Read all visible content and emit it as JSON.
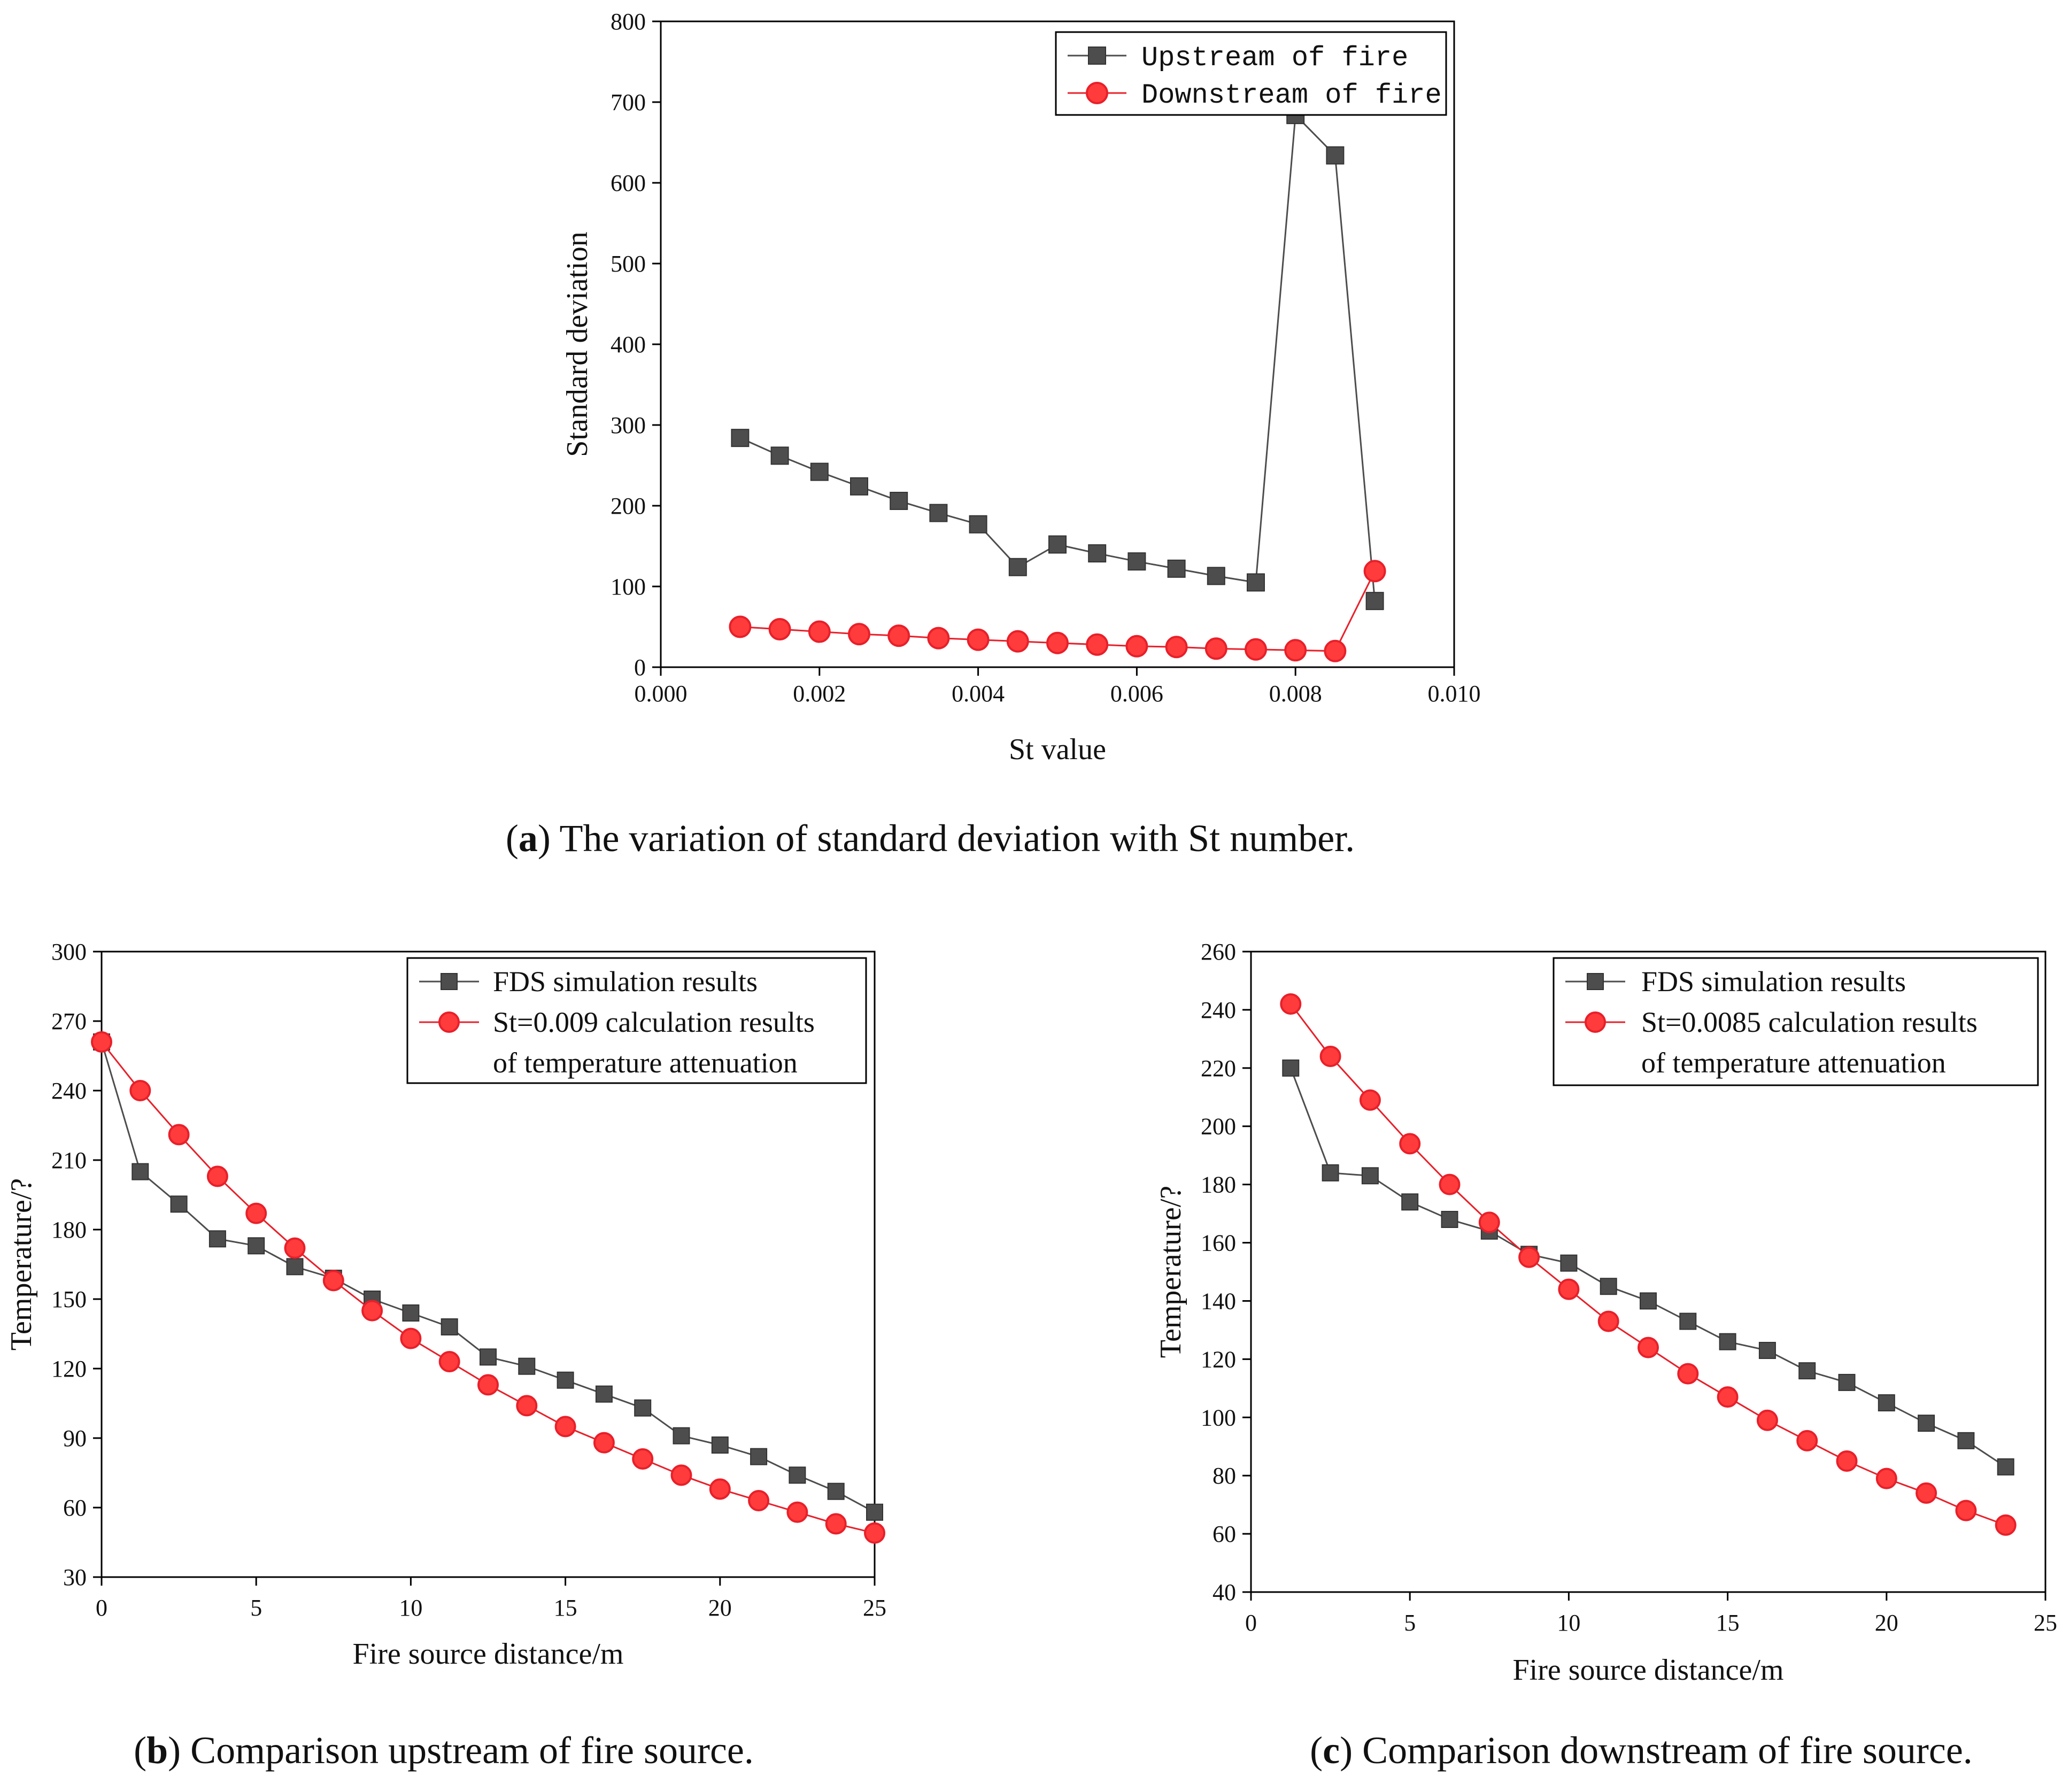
{
  "colors": {
    "upstream": "#4d4d4d",
    "downstream": "#e8202a",
    "marker_fill_red": "#ff3b3b",
    "axis": "#000000"
  },
  "chart_data": [
    {
      "id": "a",
      "type": "line",
      "caption": {
        "letter": "a",
        "open": "(",
        "close": ")",
        "text": " The variation of standard deviation with St number."
      },
      "xlabel": "St value",
      "ylabel": "Standard deviation",
      "xlim": [
        0.0,
        0.01
      ],
      "ylim": [
        0,
        800
      ],
      "xticks": [
        "0.000",
        "0.002",
        "0.004",
        "0.006",
        "0.008",
        "0.010"
      ],
      "xtick_values": [
        0.0,
        0.002,
        0.004,
        0.006,
        0.008,
        0.01
      ],
      "yticks": [
        "0",
        "100",
        "200",
        "300",
        "400",
        "500",
        "600",
        "700",
        "800"
      ],
      "ytick_values": [
        0,
        100,
        200,
        300,
        400,
        500,
        600,
        700,
        800
      ],
      "legend_position": "top-right",
      "series": [
        {
          "name": "Upstream of fire",
          "marker": "square",
          "color_key": "upstream",
          "x": [
            0.001,
            0.0015,
            0.002,
            0.0025,
            0.003,
            0.0035,
            0.004,
            0.0045,
            0.005,
            0.0055,
            0.006,
            0.0065,
            0.007,
            0.0075,
            0.008,
            0.0085,
            0.009
          ],
          "y": [
            284,
            262,
            242,
            224,
            206,
            191,
            177,
            124,
            152,
            141,
            131,
            122,
            113,
            105,
            684,
            634,
            82
          ]
        },
        {
          "name": "Downstream of fire",
          "marker": "circle",
          "color_key": "downstream",
          "x": [
            0.001,
            0.0015,
            0.002,
            0.0025,
            0.003,
            0.0035,
            0.004,
            0.0045,
            0.005,
            0.0055,
            0.006,
            0.0065,
            0.007,
            0.0075,
            0.008,
            0.0085,
            0.009
          ],
          "y": [
            50,
            47,
            44,
            41,
            39,
            36,
            34,
            32,
            30,
            28,
            26,
            25,
            23,
            22,
            21,
            20,
            119
          ]
        }
      ]
    },
    {
      "id": "b",
      "type": "line",
      "caption": {
        "letter": "b",
        "open": "(",
        "close": ")",
        "text": " Comparison upstream of fire source."
      },
      "xlabel": "Fire source distance/m",
      "ylabel": "Temperature/?",
      "xlim": [
        0,
        25
      ],
      "ylim": [
        30,
        300
      ],
      "xticks": [
        "0",
        "5",
        "10",
        "15",
        "20",
        "25"
      ],
      "xtick_values": [
        0,
        5,
        10,
        15,
        20,
        25
      ],
      "yticks": [
        "30",
        "60",
        "90",
        "120",
        "150",
        "180",
        "210",
        "240",
        "270",
        "300"
      ],
      "ytick_values": [
        30,
        60,
        90,
        120,
        150,
        180,
        210,
        240,
        270,
        300
      ],
      "legend_position": "top-right",
      "series": [
        {
          "name": "FDS simulation results",
          "marker": "square",
          "color_key": "upstream",
          "x": [
            0,
            1.25,
            2.5,
            3.75,
            5,
            6.25,
            7.5,
            8.75,
            10,
            11.25,
            12.5,
            13.75,
            15,
            16.25,
            17.5,
            18.75,
            20,
            21.25,
            22.5,
            23.75,
            25
          ],
          "y": [
            261,
            205,
            191,
            176,
            173,
            164,
            159,
            150,
            144,
            138,
            125,
            121,
            115,
            109,
            103,
            91,
            87,
            82,
            74,
            67,
            58
          ]
        },
        {
          "name": "St=0.009 calculation results",
          "name_line2": "of temperature attenuation",
          "marker": "circle",
          "color_key": "downstream",
          "x": [
            0,
            1.25,
            2.5,
            3.75,
            5,
            6.25,
            7.5,
            8.75,
            10,
            11.25,
            12.5,
            13.75,
            15,
            16.25,
            17.5,
            18.75,
            20,
            21.25,
            22.5,
            23.75,
            25
          ],
          "y": [
            261,
            240,
            221,
            203,
            187,
            172,
            158,
            145,
            133,
            123,
            113,
            104,
            95,
            88,
            81,
            74,
            68,
            63,
            58,
            53,
            49
          ]
        }
      ]
    },
    {
      "id": "c",
      "type": "line",
      "caption": {
        "letter": "c",
        "open": "(",
        "close": ")",
        "text": " Comparison downstream of fire source."
      },
      "xlabel": "Fire source distance/m",
      "ylabel": "Temperature/?",
      "xlim": [
        0,
        25
      ],
      "ylim": [
        40,
        260
      ],
      "xticks": [
        "0",
        "5",
        "10",
        "15",
        "20",
        "25"
      ],
      "xtick_values": [
        0,
        5,
        10,
        15,
        20,
        25
      ],
      "yticks": [
        "40",
        "60",
        "80",
        "100",
        "120",
        "140",
        "160",
        "180",
        "200",
        "220",
        "240",
        "260"
      ],
      "ytick_values": [
        40,
        60,
        80,
        100,
        120,
        140,
        160,
        180,
        200,
        220,
        240,
        260
      ],
      "legend_position": "top-right",
      "series": [
        {
          "name": "FDS simulation results",
          "marker": "square",
          "color_key": "upstream",
          "x": [
            1.25,
            2.5,
            3.75,
            5,
            6.25,
            7.5,
            8.75,
            10,
            11.25,
            12.5,
            13.75,
            15,
            16.25,
            17.5,
            18.75,
            20,
            21.25,
            22.5,
            23.75
          ],
          "y": [
            220,
            184,
            183,
            174,
            168,
            164,
            156,
            153,
            145,
            140,
            133,
            126,
            123,
            116,
            112,
            105,
            98,
            92,
            83
          ]
        },
        {
          "name": "St=0.0085 calculation results",
          "name_line2": "of temperature attenuation",
          "marker": "circle",
          "color_key": "downstream",
          "x": [
            1.25,
            2.5,
            3.75,
            5,
            6.25,
            7.5,
            8.75,
            10,
            11.25,
            12.5,
            13.75,
            15,
            16.25,
            17.5,
            18.75,
            20,
            21.25,
            22.5,
            23.75
          ],
          "y": [
            242,
            224,
            209,
            194,
            180,
            167,
            155,
            144,
            133,
            124,
            115,
            107,
            99,
            92,
            85,
            79,
            74,
            68,
            63
          ]
        }
      ]
    }
  ]
}
